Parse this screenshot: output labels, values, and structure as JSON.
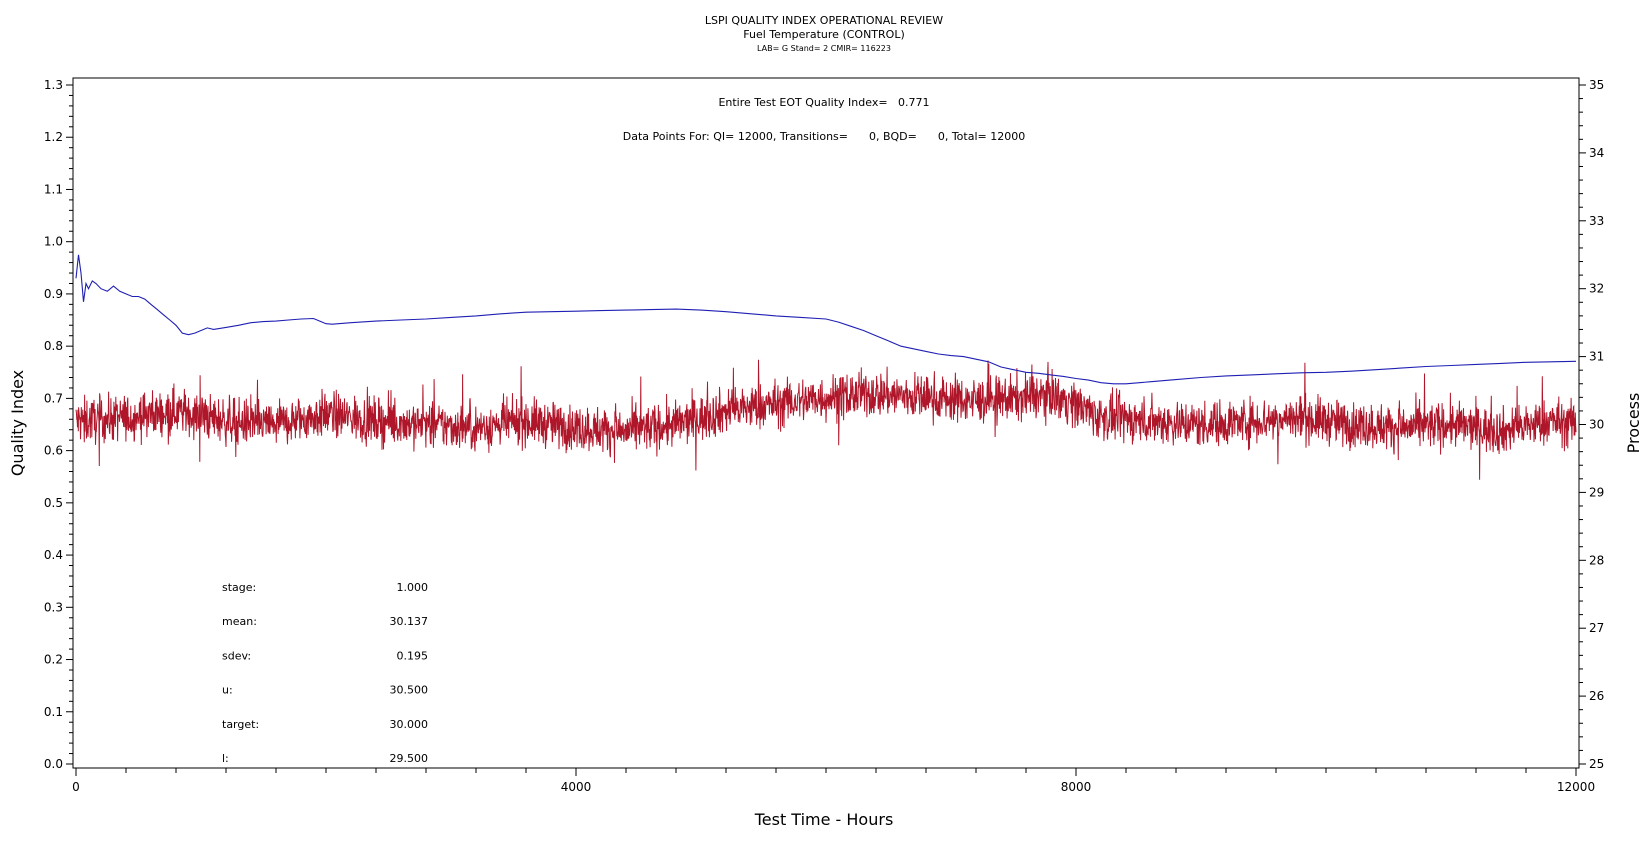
{
  "chart_data": {
    "type": "line",
    "title": "LSPI QUALITY INDEX OPERATIONAL REVIEW",
    "subtitle": "Fuel Temperature (CONTROL)",
    "subtitle2": "LAB= G Stand= 2 CMIR= 116223",
    "annotation1": "Entire Test EOT Quality Index=   0.771",
    "annotation2": "Data Points For: QI= 12000, Transitions=      0, BQD=      0, Total= 12000",
    "xlabel": "Test Time - Hours",
    "ylabel_left": "Quality Index",
    "ylabel_right": "Process",
    "xlim": [
      0,
      12000
    ],
    "ylim_left": [
      0.0,
      1.3
    ],
    "ylim_right": [
      25,
      35
    ],
    "x_ticks": [
      "0",
      "4000",
      "8000",
      "12000"
    ],
    "y_left_ticks": [
      "0.0",
      "0.1",
      "0.2",
      "0.3",
      "0.4",
      "0.5",
      "0.6",
      "0.7",
      "0.8",
      "0.9",
      "1.0",
      "1.1",
      "1.2",
      "1.3"
    ],
    "y_right_ticks": [
      "25",
      "26",
      "27",
      "28",
      "29",
      "30",
      "31",
      "32",
      "33",
      "34",
      "35"
    ],
    "series": [
      {
        "axis": "left",
        "color": "#1f1fb4",
        "x": [
          0,
          20,
          40,
          60,
          80,
          100,
          130,
          160,
          200,
          250,
          300,
          350,
          400,
          450,
          500,
          550,
          600,
          650,
          700,
          750,
          800,
          850,
          900,
          950,
          1000,
          1050,
          1100,
          1150,
          1200,
          1300,
          1400,
          1500,
          1600,
          1700,
          1800,
          1900,
          1950,
          2000,
          2050,
          2100,
          2200,
          2400,
          2600,
          2800,
          3000,
          3200,
          3400,
          3600,
          3800,
          4000,
          4200,
          4400,
          4600,
          4800,
          5000,
          5200,
          5400,
          5600,
          5800,
          6000,
          6100,
          6200,
          6300,
          6400,
          6500,
          6600,
          6700,
          6800,
          6900,
          7000,
          7100,
          7200,
          7300,
          7400,
          7500,
          7600,
          7700,
          7800,
          7900,
          8000,
          8100,
          8200,
          8300,
          8400,
          8600,
          8800,
          9000,
          9200,
          9400,
          9600,
          9800,
          10000,
          10200,
          10400,
          10600,
          10800,
          11000,
          11200,
          11400,
          11600,
          11800,
          12000
        ],
        "values": [
          0.93,
          0.975,
          0.94,
          0.885,
          0.92,
          0.91,
          0.925,
          0.92,
          0.91,
          0.905,
          0.915,
          0.905,
          0.9,
          0.895,
          0.895,
          0.89,
          0.88,
          0.87,
          0.86,
          0.85,
          0.84,
          0.825,
          0.822,
          0.825,
          0.83,
          0.835,
          0.832,
          0.834,
          0.836,
          0.84,
          0.845,
          0.847,
          0.848,
          0.85,
          0.852,
          0.853,
          0.848,
          0.843,
          0.842,
          0.843,
          0.845,
          0.848,
          0.85,
          0.852,
          0.855,
          0.858,
          0.862,
          0.865,
          0.866,
          0.867,
          0.868,
          0.869,
          0.87,
          0.871,
          0.869,
          0.866,
          0.862,
          0.858,
          0.855,
          0.852,
          0.846,
          0.838,
          0.83,
          0.82,
          0.81,
          0.8,
          0.795,
          0.79,
          0.785,
          0.782,
          0.78,
          0.775,
          0.77,
          0.76,
          0.755,
          0.75,
          0.748,
          0.745,
          0.742,
          0.738,
          0.735,
          0.73,
          0.728,
          0.728,
          0.732,
          0.736,
          0.74,
          0.743,
          0.745,
          0.747,
          0.749,
          0.75,
          0.752,
          0.755,
          0.758,
          0.761,
          0.763,
          0.765,
          0.767,
          0.769,
          0.77,
          0.771
        ]
      },
      {
        "axis": "right",
        "color": "#b0162a",
        "x": [
          0,
          400,
          800,
          1200,
          1600,
          2000,
          2400,
          2800,
          3200,
          3600,
          4000,
          4400,
          4800,
          5200,
          5600,
          6000,
          6400,
          6800,
          7200,
          7600,
          7800,
          8000,
          8200,
          8600,
          9000,
          9400,
          9800,
          10200,
          10600,
          11000,
          11400,
          11800,
          12000
        ],
        "values": [
          30.05,
          30.1,
          30.2,
          30.05,
          30.0,
          30.15,
          30.05,
          30.0,
          29.95,
          30.05,
          29.95,
          29.9,
          30.0,
          30.2,
          30.3,
          30.4,
          30.45,
          30.4,
          30.35,
          30.4,
          30.45,
          30.3,
          30.1,
          30.05,
          30.0,
          30.05,
          30.1,
          30.0,
          29.95,
          30.0,
          29.9,
          30.05,
          30.0
        ],
        "noise_sdev": 0.195,
        "points": 12000
      }
    ],
    "stats": [
      {
        "label": "stage:",
        "value": "1.000"
      },
      {
        "label": "mean:",
        "value": "30.137"
      },
      {
        "label": "sdev:",
        "value": "0.195"
      },
      {
        "label": "u:",
        "value": "30.500"
      },
      {
        "label": "target:",
        "value": "30.000"
      },
      {
        "label": "l:",
        "value": "29.500"
      }
    ],
    "grid": false,
    "legend": "none"
  }
}
